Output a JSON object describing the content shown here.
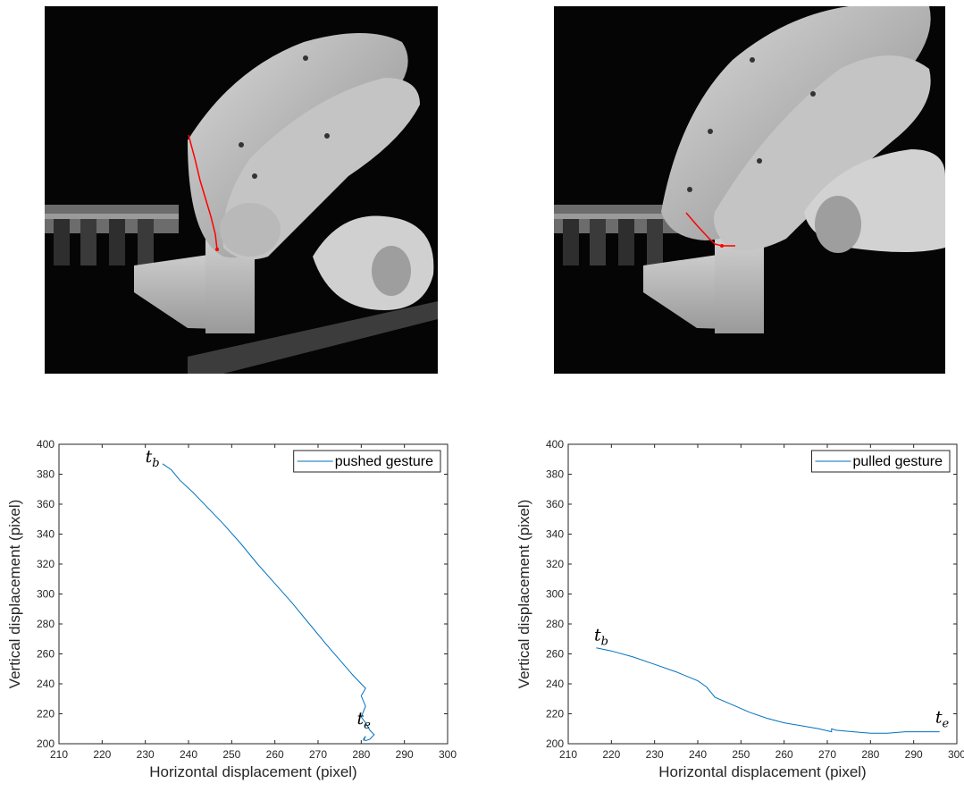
{
  "photos": [
    {
      "name": "pushed-gesture-photo",
      "track_color": "#ff0000"
    },
    {
      "name": "pulled-gesture-photo",
      "track_color": "#ff0000"
    }
  ],
  "chart_data": [
    {
      "type": "line",
      "xlabel": "Horizontal displacement (pixel)",
      "ylabel": "Vertical displacement (pixel)",
      "xlim": [
        210,
        300
      ],
      "ylim": [
        200,
        400
      ],
      "xticks": [
        210,
        220,
        230,
        240,
        250,
        260,
        270,
        280,
        290,
        300
      ],
      "yticks": [
        200,
        220,
        240,
        260,
        280,
        300,
        320,
        340,
        360,
        380,
        400
      ],
      "grid": false,
      "legend_position": "top-right",
      "color": "#0072bd",
      "series": [
        {
          "name": "pushed gesture",
          "x": [
            234,
            236,
            238,
            241,
            244,
            248,
            252,
            256,
            260,
            264,
            268,
            272,
            275,
            278,
            280,
            281,
            280,
            281,
            280,
            281,
            282,
            283,
            282,
            281,
            280.5,
            281,
            280.5
          ],
          "y": [
            387,
            383,
            376,
            368,
            359,
            347,
            334,
            320,
            307,
            294,
            280,
            266,
            256,
            246,
            240,
            237,
            232,
            225,
            218,
            214,
            209,
            206,
            203,
            202,
            203,
            205,
            202
          ]
        }
      ],
      "annotations": [
        {
          "base": "t",
          "sub": "b",
          "x": 230,
          "y": 388
        },
        {
          "base": "t",
          "sub": "e",
          "x": 279,
          "y": 213
        }
      ]
    },
    {
      "type": "line",
      "xlabel": "Horizontal displacement (pixel)",
      "ylabel": "Vertical displacement (pixel)",
      "xlim": [
        210,
        300
      ],
      "ylim": [
        200,
        400
      ],
      "xticks": [
        210,
        220,
        230,
        240,
        250,
        260,
        270,
        280,
        290,
        300
      ],
      "yticks": [
        200,
        220,
        240,
        260,
        280,
        300,
        320,
        340,
        360,
        380,
        400
      ],
      "grid": false,
      "legend_position": "top-right",
      "color": "#0072bd",
      "series": [
        {
          "name": "pulled gesture",
          "x": [
            216.5,
            220,
            225,
            230,
            235,
            240,
            242,
            244,
            248,
            252,
            256,
            260,
            264,
            268,
            271,
            271,
            272,
            276,
            280,
            284,
            288,
            292,
            296
          ],
          "y": [
            264,
            262,
            258,
            253,
            248,
            242,
            238,
            231,
            226,
            221,
            217,
            214,
            212,
            210,
            208,
            210,
            209,
            208,
            207,
            207,
            208,
            208,
            208
          ]
        }
      ],
      "annotations": [
        {
          "base": "t",
          "sub": "b",
          "x": 216,
          "y": 269
        },
        {
          "base": "t",
          "sub": "e",
          "x": 295,
          "y": 214
        }
      ]
    }
  ]
}
